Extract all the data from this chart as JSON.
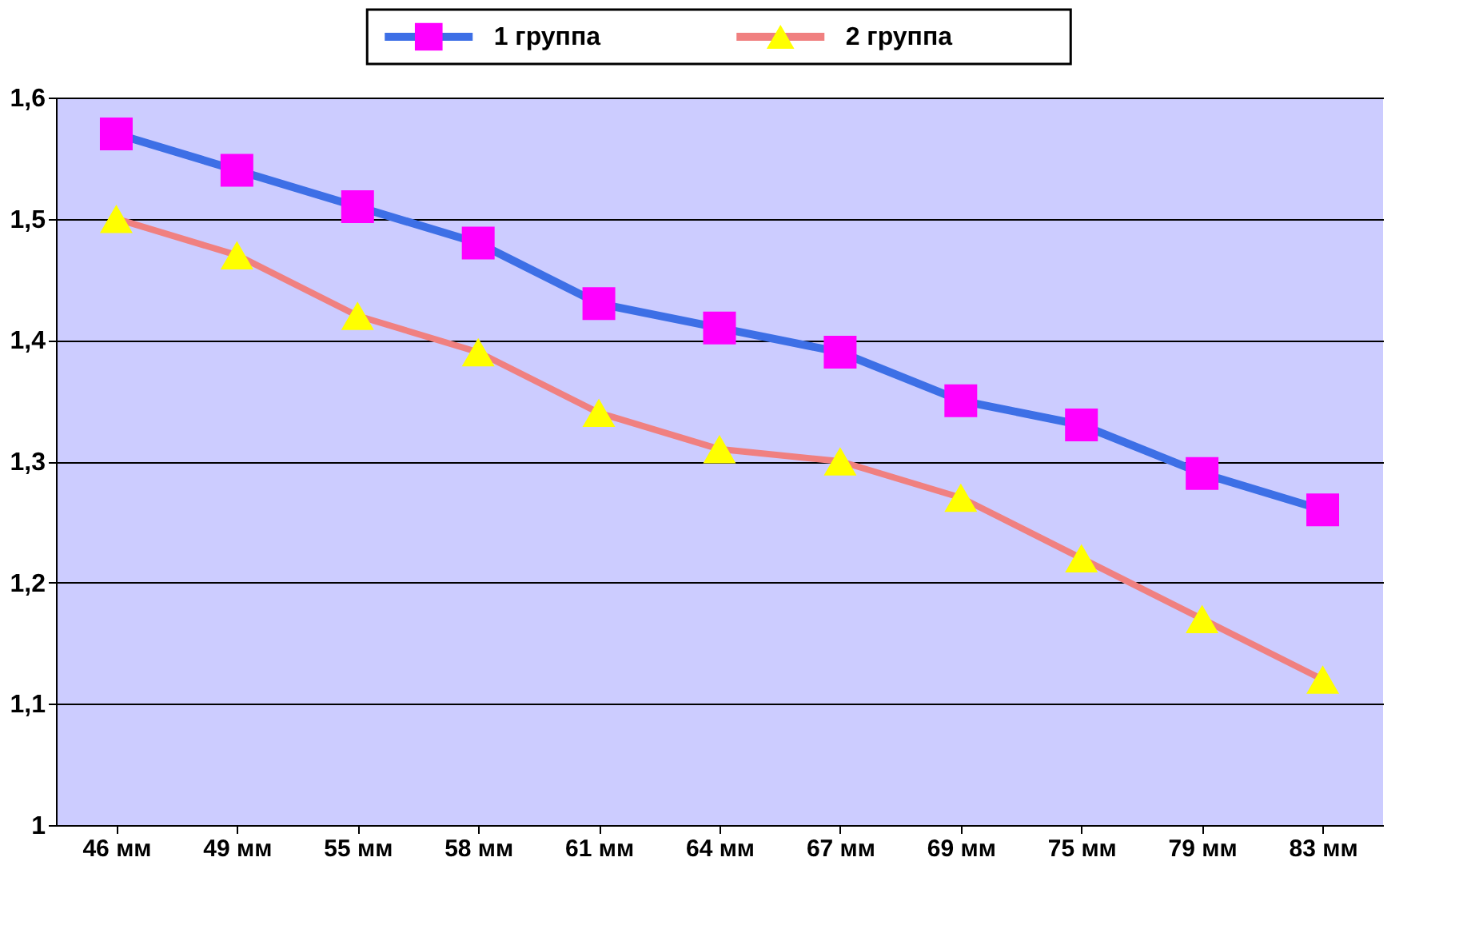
{
  "chart_data": {
    "type": "line",
    "categories": [
      "46 мм",
      "49 мм",
      "55 мм",
      "58 мм",
      "61 мм",
      "64 мм",
      "67 мм",
      "69 мм",
      "75 мм",
      "79 мм",
      "83 мм"
    ],
    "series": [
      {
        "name": "1 группа",
        "color": "#3d6fe6",
        "marker": "square",
        "colors": [
          "#ff00ff",
          "#ff00ff",
          "#ff00ff",
          "#ff00ff",
          "#ff00ff",
          "#ff00ff",
          "#ff00ff",
          "#ff00ff",
          "#ff00ff",
          "#ff00ff",
          "#ff00ff"
        ],
        "values": [
          1.57,
          1.54,
          1.51,
          1.48,
          1.43,
          1.41,
          1.39,
          1.35,
          1.33,
          1.29,
          1.26
        ]
      },
      {
        "name": "2 группа",
        "color": "#f08080",
        "marker": "triangle",
        "colors": [
          "#ffff00",
          "#ffff00",
          "#ffff00",
          "#ffff00",
          "#ffff00",
          "#ffff00",
          "#ffff00",
          "#ffff00",
          "#ffff00",
          "#ffff00",
          "#ffff00"
        ],
        "values": [
          1.5,
          1.47,
          1.42,
          1.39,
          1.34,
          1.31,
          1.3,
          1.27,
          1.22,
          1.17,
          1.12
        ]
      }
    ],
    "ylim": [
      1,
      1.6
    ],
    "yticks": [
      {
        "value": 1,
        "label": "1"
      },
      {
        "value": 1.1,
        "label": "1,1"
      },
      {
        "value": 1.2,
        "label": "1,2"
      },
      {
        "value": 1.3,
        "label": "1,3"
      },
      {
        "value": 1.4,
        "label": "1,4"
      },
      {
        "value": 1.5,
        "label": "1,5"
      },
      {
        "value": 1.6,
        "label": "1,6"
      }
    ],
    "grid": "y",
    "legend": "top"
  }
}
